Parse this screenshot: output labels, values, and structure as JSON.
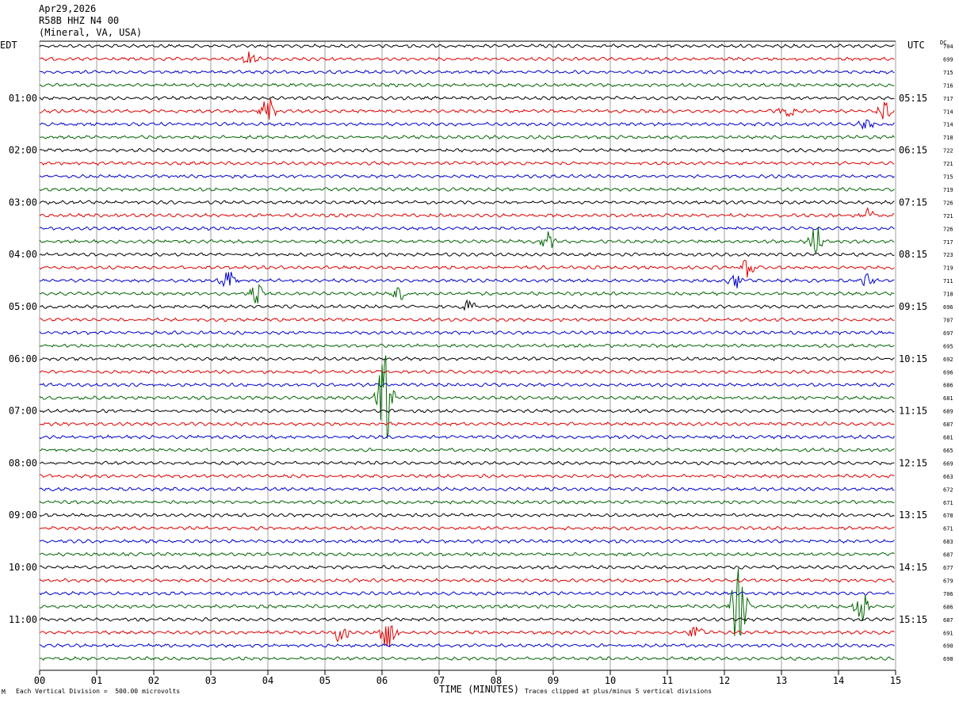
{
  "header": {
    "date": "Apr29,2026",
    "station": "R58B HHZ N4 00",
    "location": "(Mineral, VA, USA)"
  },
  "left_tz": "EDT",
  "right_tz": "UTC",
  "dc_label": "DC",
  "footer": {
    "scale": "Each Vertical Division =  500.00 microvolts",
    "clip": "Traces clipped at plus/minus 5 vertical divisions",
    "xlabel": "TIME (MINUTES)",
    "corner_mark": "M"
  },
  "colors": {
    "trace_cycle": [
      "#000000",
      "#dd0000",
      "#0000cc",
      "#006600"
    ],
    "grid": "#888888"
  },
  "chart_data": {
    "type": "line",
    "subtype": "helicorder",
    "xlabel": "TIME (MINUTES)",
    "x_ticks": [
      "00",
      "01",
      "02",
      "03",
      "04",
      "05",
      "06",
      "07",
      "08",
      "09",
      "10",
      "11",
      "12",
      "13",
      "14",
      "15"
    ],
    "xlim": [
      0,
      15
    ],
    "minutes_per_line": 15,
    "left_time_labels": [
      "01:00",
      "02:00",
      "03:00",
      "04:00",
      "05:00",
      "06:00",
      "07:00",
      "08:00",
      "09:00",
      "10:00",
      "11:00"
    ],
    "right_time_labels": [
      "05:15",
      "06:15",
      "07:15",
      "08:15",
      "09:15",
      "10:15",
      "11:15",
      "12:15",
      "13:15",
      "14:15",
      "15:15"
    ],
    "dc_offsets": [
      704,
      699,
      715,
      716,
      717,
      714,
      714,
      718,
      722,
      721,
      715,
      719,
      726,
      721,
      726,
      717,
      723,
      719,
      711,
      718,
      696,
      707,
      697,
      695,
      692,
      696,
      686,
      681,
      689,
      687,
      681,
      665,
      669,
      663,
      672,
      671,
      678,
      671,
      683,
      687,
      677,
      679,
      706,
      686,
      687,
      691,
      690,
      698
    ],
    "events": [
      {
        "line": 1,
        "minute": 3.7,
        "amp": 1.2
      },
      {
        "line": 5,
        "minute": 4.0,
        "amp": 2.2
      },
      {
        "line": 5,
        "minute": 14.8,
        "amp": 1.5
      },
      {
        "line": 5,
        "minute": 13.1,
        "amp": 1.0
      },
      {
        "line": 6,
        "minute": 14.5,
        "amp": 0.8
      },
      {
        "line": 13,
        "minute": 14.5,
        "amp": 1.2
      },
      {
        "line": 15,
        "minute": 8.9,
        "amp": 1.4
      },
      {
        "line": 15,
        "minute": 13.6,
        "amp": 2.5
      },
      {
        "line": 17,
        "minute": 12.4,
        "amp": 1.5
      },
      {
        "line": 18,
        "minute": 3.3,
        "amp": 2.0
      },
      {
        "line": 18,
        "minute": 12.2,
        "amp": 1.2
      },
      {
        "line": 18,
        "minute": 14.5,
        "amp": 1.0
      },
      {
        "line": 19,
        "minute": 3.8,
        "amp": 1.5
      },
      {
        "line": 19,
        "minute": 6.3,
        "amp": 1.2
      },
      {
        "line": 20,
        "minute": 7.5,
        "amp": 1.2
      },
      {
        "line": 27,
        "minute": 6.05,
        "amp": 7.0
      },
      {
        "line": 43,
        "minute": 12.25,
        "amp": 6.5
      },
      {
        "line": 43,
        "minute": 14.4,
        "amp": 2.8
      },
      {
        "line": 45,
        "minute": 5.3,
        "amp": 2.2
      },
      {
        "line": 45,
        "minute": 6.1,
        "amp": 2.8
      },
      {
        "line": 45,
        "minute": 11.5,
        "amp": 1.3
      }
    ]
  }
}
